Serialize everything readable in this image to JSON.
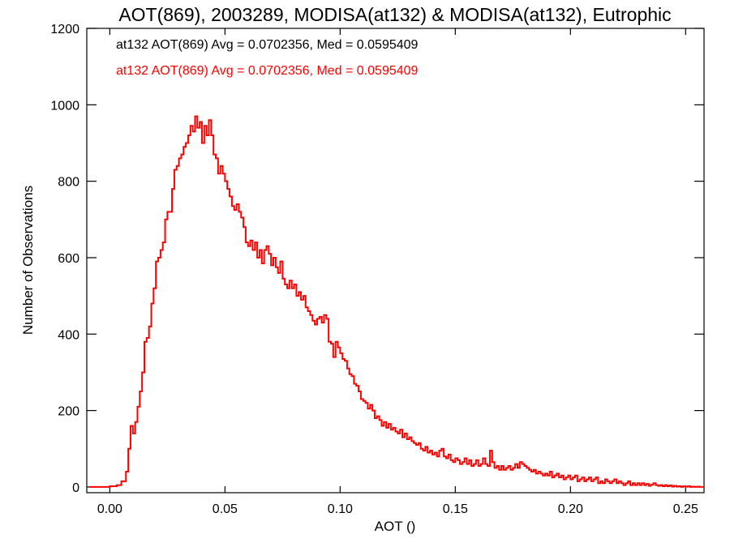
{
  "chart_data": {
    "type": "histogram",
    "title": "AOT(869), 2003289, MODISA(at132) & MODISA(at132), Eutrophic",
    "xlabel": "AOT ()",
    "ylabel": "Number of Observations",
    "xlim": [
      -0.01,
      0.258
    ],
    "ylim": [
      -15,
      1200
    ],
    "x_ticks": [
      0.0,
      0.05,
      0.1,
      0.15,
      0.2,
      0.25
    ],
    "x_tick_labels": [
      "0.00",
      "0.05",
      "0.10",
      "0.15",
      "0.20",
      "0.25"
    ],
    "y_ticks": [
      0,
      200,
      400,
      600,
      800,
      1000,
      1200
    ],
    "y_tick_labels": [
      "0",
      "200",
      "400",
      "600",
      "800",
      "1000",
      "1200"
    ],
    "annotations": [
      {
        "text": "at132 AOT(869) Avg = 0.0702356, Med = 0.0595409",
        "color": "#000000"
      },
      {
        "text": "at132 AOT(869) Avg = 0.0702356, Med = 0.0595409",
        "color": "#ff0000"
      }
    ],
    "series": [
      {
        "color": "#ff0000",
        "points": [
          [
            -0.009,
            0
          ],
          [
            0.0,
            2
          ],
          [
            0.003,
            5
          ],
          [
            0.005,
            15
          ],
          [
            0.007,
            40
          ],
          [
            0.008,
            100
          ],
          [
            0.009,
            160
          ],
          [
            0.01,
            140
          ],
          [
            0.011,
            170
          ],
          [
            0.012,
            210
          ],
          [
            0.013,
            250
          ],
          [
            0.014,
            300
          ],
          [
            0.015,
            380
          ],
          [
            0.016,
            390
          ],
          [
            0.017,
            420
          ],
          [
            0.018,
            480
          ],
          [
            0.019,
            520
          ],
          [
            0.02,
            590
          ],
          [
            0.021,
            600
          ],
          [
            0.022,
            620
          ],
          [
            0.023,
            640
          ],
          [
            0.024,
            700
          ],
          [
            0.025,
            720
          ],
          [
            0.026,
            720
          ],
          [
            0.027,
            780
          ],
          [
            0.028,
            830
          ],
          [
            0.029,
            840
          ],
          [
            0.03,
            860
          ],
          [
            0.031,
            870
          ],
          [
            0.032,
            890
          ],
          [
            0.033,
            900
          ],
          [
            0.034,
            920
          ],
          [
            0.035,
            945
          ],
          [
            0.036,
            930
          ],
          [
            0.037,
            970
          ],
          [
            0.038,
            940
          ],
          [
            0.039,
            955
          ],
          [
            0.04,
            900
          ],
          [
            0.041,
            945
          ],
          [
            0.042,
            920
          ],
          [
            0.043,
            960
          ],
          [
            0.044,
            920
          ],
          [
            0.045,
            870
          ],
          [
            0.046,
            860
          ],
          [
            0.047,
            820
          ],
          [
            0.048,
            840
          ],
          [
            0.049,
            820
          ],
          [
            0.05,
            800
          ],
          [
            0.051,
            780
          ],
          [
            0.052,
            760
          ],
          [
            0.053,
            735
          ],
          [
            0.054,
            725
          ],
          [
            0.055,
            740
          ],
          [
            0.056,
            720
          ],
          [
            0.057,
            705
          ],
          [
            0.058,
            680
          ],
          [
            0.059,
            640
          ],
          [
            0.06,
            630
          ],
          [
            0.061,
            645
          ],
          [
            0.062,
            620
          ],
          [
            0.063,
            640
          ],
          [
            0.064,
            600
          ],
          [
            0.065,
            620
          ],
          [
            0.066,
            585
          ],
          [
            0.067,
            620
          ],
          [
            0.068,
            630
          ],
          [
            0.069,
            610
          ],
          [
            0.07,
            580
          ],
          [
            0.071,
            600
          ],
          [
            0.072,
            575
          ],
          [
            0.073,
            560
          ],
          [
            0.074,
            590
          ],
          [
            0.075,
            545
          ],
          [
            0.076,
            530
          ],
          [
            0.077,
            520
          ],
          [
            0.078,
            540
          ],
          [
            0.079,
            520
          ],
          [
            0.08,
            530
          ],
          [
            0.081,
            500
          ],
          [
            0.082,
            510
          ],
          [
            0.083,
            490
          ],
          [
            0.084,
            500
          ],
          [
            0.085,
            470
          ],
          [
            0.086,
            460
          ],
          [
            0.087,
            450
          ],
          [
            0.088,
            435
          ],
          [
            0.089,
            425
          ],
          [
            0.09,
            440
          ],
          [
            0.091,
            445
          ],
          [
            0.092,
            430
          ],
          [
            0.093,
            450
          ],
          [
            0.094,
            440
          ],
          [
            0.095,
            380
          ],
          [
            0.096,
            375
          ],
          [
            0.097,
            340
          ],
          [
            0.098,
            380
          ],
          [
            0.099,
            365
          ],
          [
            0.1,
            350
          ],
          [
            0.101,
            335
          ],
          [
            0.102,
            330
          ],
          [
            0.103,
            310
          ],
          [
            0.104,
            295
          ],
          [
            0.105,
            290
          ],
          [
            0.106,
            270
          ],
          [
            0.107,
            265
          ],
          [
            0.108,
            250
          ],
          [
            0.109,
            230
          ],
          [
            0.11,
            225
          ],
          [
            0.111,
            220
          ],
          [
            0.112,
            205
          ],
          [
            0.113,
            215
          ],
          [
            0.114,
            200
          ],
          [
            0.115,
            180
          ],
          [
            0.116,
            185
          ],
          [
            0.117,
            175
          ],
          [
            0.118,
            160
          ],
          [
            0.119,
            170
          ],
          [
            0.12,
            155
          ],
          [
            0.121,
            165
          ],
          [
            0.122,
            150
          ],
          [
            0.123,
            155
          ],
          [
            0.124,
            145
          ],
          [
            0.125,
            140
          ],
          [
            0.126,
            150
          ],
          [
            0.127,
            130
          ],
          [
            0.128,
            140
          ],
          [
            0.129,
            125
          ],
          [
            0.13,
            130
          ],
          [
            0.131,
            120
          ],
          [
            0.132,
            115
          ],
          [
            0.133,
            110
          ],
          [
            0.134,
            115
          ],
          [
            0.135,
            100
          ],
          [
            0.136,
            95
          ],
          [
            0.137,
            105
          ],
          [
            0.138,
            90
          ],
          [
            0.139,
            95
          ],
          [
            0.14,
            85
          ],
          [
            0.141,
            90
          ],
          [
            0.142,
            80
          ],
          [
            0.143,
            95
          ],
          [
            0.144,
            100
          ],
          [
            0.145,
            80
          ],
          [
            0.146,
            75
          ],
          [
            0.147,
            85
          ],
          [
            0.148,
            70
          ],
          [
            0.149,
            65
          ],
          [
            0.15,
            75
          ],
          [
            0.151,
            70
          ],
          [
            0.152,
            60
          ],
          [
            0.153,
            65
          ],
          [
            0.154,
            75
          ],
          [
            0.155,
            60
          ],
          [
            0.156,
            70
          ],
          [
            0.157,
            55
          ],
          [
            0.158,
            60
          ],
          [
            0.159,
            70
          ],
          [
            0.16,
            55
          ],
          [
            0.161,
            60
          ],
          [
            0.162,
            75
          ],
          [
            0.163,
            60
          ],
          [
            0.164,
            55
          ],
          [
            0.165,
            95
          ],
          [
            0.166,
            65
          ],
          [
            0.167,
            50
          ],
          [
            0.168,
            55
          ],
          [
            0.169,
            45
          ],
          [
            0.17,
            55
          ],
          [
            0.171,
            45
          ],
          [
            0.172,
            50
          ],
          [
            0.173,
            55
          ],
          [
            0.174,
            45
          ],
          [
            0.175,
            50
          ],
          [
            0.176,
            60
          ],
          [
            0.177,
            50
          ],
          [
            0.178,
            65
          ],
          [
            0.179,
            60
          ],
          [
            0.18,
            55
          ],
          [
            0.181,
            50
          ],
          [
            0.182,
            45
          ],
          [
            0.183,
            40
          ],
          [
            0.184,
            45
          ],
          [
            0.185,
            35
          ],
          [
            0.186,
            40
          ],
          [
            0.187,
            35
          ],
          [
            0.188,
            30
          ],
          [
            0.189,
            35
          ],
          [
            0.19,
            30
          ],
          [
            0.191,
            40
          ],
          [
            0.192,
            25
          ],
          [
            0.193,
            30
          ],
          [
            0.194,
            35
          ],
          [
            0.195,
            25
          ],
          [
            0.196,
            30
          ],
          [
            0.197,
            20
          ],
          [
            0.198,
            25
          ],
          [
            0.199,
            30
          ],
          [
            0.2,
            20
          ],
          [
            0.201,
            25
          ],
          [
            0.202,
            30
          ],
          [
            0.203,
            15
          ],
          [
            0.204,
            20
          ],
          [
            0.205,
            25
          ],
          [
            0.206,
            15
          ],
          [
            0.207,
            20
          ],
          [
            0.208,
            25
          ],
          [
            0.209,
            15
          ],
          [
            0.21,
            20
          ],
          [
            0.211,
            25
          ],
          [
            0.212,
            10
          ],
          [
            0.213,
            15
          ],
          [
            0.214,
            10
          ],
          [
            0.215,
            20
          ],
          [
            0.216,
            15
          ],
          [
            0.217,
            10
          ],
          [
            0.218,
            15
          ],
          [
            0.219,
            20
          ],
          [
            0.22,
            10
          ],
          [
            0.221,
            15
          ],
          [
            0.222,
            10
          ],
          [
            0.223,
            5
          ],
          [
            0.224,
            10
          ],
          [
            0.225,
            15
          ],
          [
            0.226,
            5
          ],
          [
            0.227,
            10
          ],
          [
            0.228,
            5
          ],
          [
            0.229,
            10
          ],
          [
            0.23,
            5
          ],
          [
            0.231,
            10
          ],
          [
            0.232,
            5
          ],
          [
            0.233,
            8
          ],
          [
            0.234,
            3
          ],
          [
            0.235,
            6
          ],
          [
            0.236,
            10
          ],
          [
            0.237,
            5
          ],
          [
            0.238,
            3
          ],
          [
            0.239,
            5
          ],
          [
            0.24,
            2
          ],
          [
            0.241,
            5
          ],
          [
            0.242,
            2
          ],
          [
            0.243,
            4
          ],
          [
            0.244,
            1
          ],
          [
            0.245,
            3
          ],
          [
            0.246,
            1
          ],
          [
            0.247,
            2
          ],
          [
            0.248,
            0
          ],
          [
            0.249,
            2
          ],
          [
            0.25,
            1
          ],
          [
            0.251,
            2
          ],
          [
            0.252,
            0
          ],
          [
            0.253,
            1
          ],
          [
            0.254,
            0
          ],
          [
            0.255,
            1
          ],
          [
            0.256,
            0
          ],
          [
            0.257,
            0
          ]
        ]
      }
    ]
  }
}
